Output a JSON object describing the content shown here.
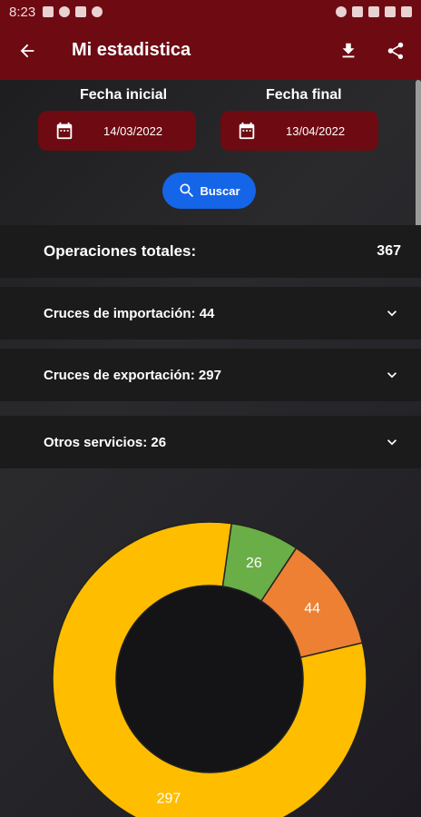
{
  "status_bar": {
    "time": "8:23"
  },
  "app_bar": {
    "title": "Mi estadistica"
  },
  "dates": {
    "start_label": "Fecha inicial",
    "start_value": "14/03/2022",
    "end_label": "Fecha final",
    "end_value": "13/04/2022"
  },
  "search_button": {
    "label": "Buscar",
    "color": "#1565e8"
  },
  "summary": {
    "total_label": "Operaciones totales:",
    "total_value": "367",
    "rows": [
      {
        "label": "Cruces de importación: 44"
      },
      {
        "label": "Cruces de exportación: 297"
      },
      {
        "label": "Otros servicios: 26"
      }
    ]
  },
  "colors": {
    "brand": "#6e0a12",
    "accent": "#1565e8"
  },
  "chart_data": {
    "type": "pie",
    "variant": "donut",
    "title": "",
    "slices": [
      {
        "label": "Otros servicios",
        "value": 26,
        "color": "#6aae47"
      },
      {
        "label": "Cruces de importación",
        "value": 44,
        "color": "#ee8033"
      },
      {
        "label": "Cruces de exportación",
        "value": 297,
        "color": "#ffbd00"
      }
    ],
    "data_labels": [
      "26",
      "44",
      "297"
    ]
  }
}
